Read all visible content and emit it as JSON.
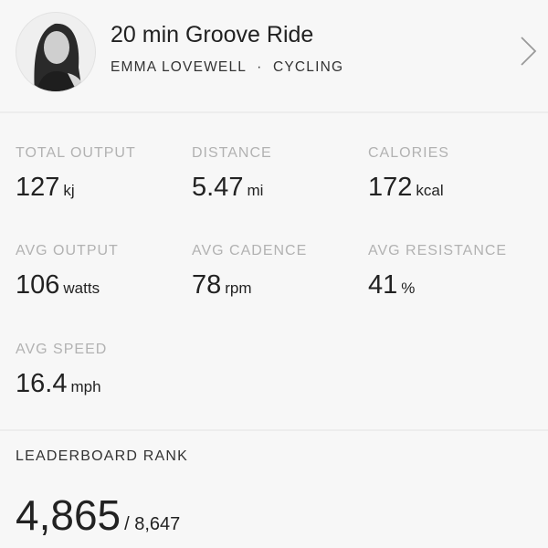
{
  "header": {
    "title": "20 min Groove Ride",
    "instructor": "EMMA LOVEWELL",
    "separator": "·",
    "discipline": "CYCLING",
    "chevron_icon": "chevron-right-icon"
  },
  "stats": [
    {
      "label": "TOTAL OUTPUT",
      "value": "127",
      "unit": "kj"
    },
    {
      "label": "DISTANCE",
      "value": "5.47",
      "unit": "mi"
    },
    {
      "label": "CALORIES",
      "value": "172",
      "unit": "kcal"
    },
    {
      "label": "AVG OUTPUT",
      "value": "106",
      "unit": "watts"
    },
    {
      "label": "AVG CADENCE",
      "value": "78",
      "unit": "rpm"
    },
    {
      "label": "AVG RESISTANCE",
      "value": "41",
      "unit": "%"
    },
    {
      "label": "AVG SPEED",
      "value": "16.4",
      "unit": "mph"
    }
  ],
  "leaderboard": {
    "label": "LEADERBOARD RANK",
    "rank": "4,865",
    "total": "/ 8,647"
  }
}
